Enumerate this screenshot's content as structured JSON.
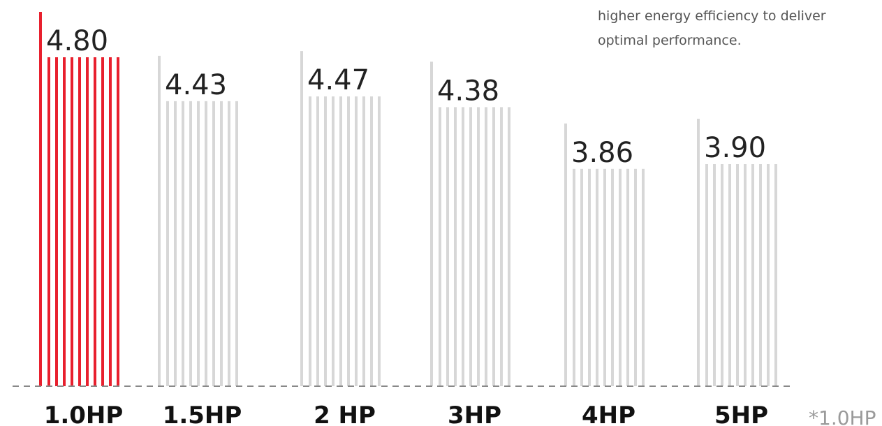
{
  "intro": {
    "line1": "higher energy efficiency to deliver",
    "line2": "optimal performance."
  },
  "footnote": "*1.0HP",
  "colors": {
    "highlight": "#e8202e",
    "bar": "#d7d7d7",
    "baseline": "#888888"
  },
  "chart_data": {
    "type": "bar",
    "categories": [
      "1.0HP",
      "1.5HP",
      "2 HP",
      "3HP",
      "4HP",
      "5HP"
    ],
    "values": [
      4.8,
      4.43,
      4.47,
      4.38,
      3.86,
      3.9
    ],
    "value_labels": [
      "4.80",
      "4.43",
      "4.47",
      "4.38",
      "3.86",
      "3.90"
    ],
    "highlight_index": 0,
    "grid": false,
    "baseline_style": "dashed"
  }
}
